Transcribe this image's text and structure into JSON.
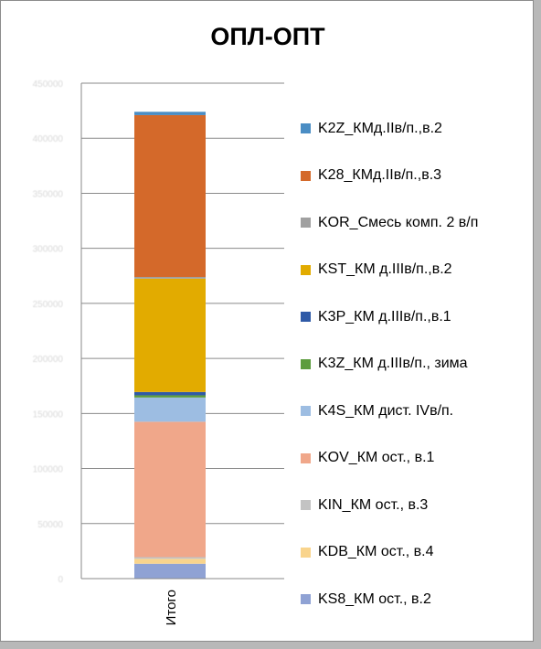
{
  "chart_data": {
    "type": "bar",
    "stacked": true,
    "title": "ОПЛ-ОПТ",
    "categories": [
      "Итого"
    ],
    "ylim": [
      0,
      450000
    ],
    "yticks": [
      0,
      50000,
      100000,
      150000,
      200000,
      250000,
      300000,
      350000,
      400000,
      450000
    ],
    "ytick_labels": [
      "0",
      "50000",
      "100000",
      "150000",
      "200000",
      "250000",
      "300000",
      "350000",
      "400000",
      "450000"
    ],
    "grid": true,
    "legend_position": "right",
    "series": [
      {
        "name": "KS8_КМ ост., в.2",
        "values": [
          13500
        ],
        "color": "#8fa2d4"
      },
      {
        "name": "KDB_КМ ост., в.4",
        "values": [
          4500
        ],
        "color": "#f9d48c"
      },
      {
        "name": "KIN_КМ ост., в.3",
        "values": [
          1500
        ],
        "color": "#c3c3c3"
      },
      {
        "name": "KOV_КМ ост., в.1",
        "values": [
          123000
        ],
        "color": "#f0a78a"
      },
      {
        "name": "K4S_КМ дист. IVв/п.",
        "values": [
          22000
        ],
        "color": "#9dbde2"
      },
      {
        "name": "K3Z_КМ д.IIIв/п., зима",
        "values": [
          2000
        ],
        "color": "#5c9c3d"
      },
      {
        "name": "K3P_КМ д.IIIв/п.,в.1",
        "values": [
          3000
        ],
        "color": "#2f5aa7"
      },
      {
        "name": "KST_КМ д.IIIв/п.,в.2",
        "values": [
          103000
        ],
        "color": "#e2ab00"
      },
      {
        "name": "KOR_Смесь комп. 2 в/п",
        "values": [
          1500
        ],
        "color": "#a0a0a0"
      },
      {
        "name": "K28_КМд.IIв/п.,в.3",
        "values": [
          147000
        ],
        "color": "#d4692a"
      },
      {
        "name": "K2Z_КМд.IIв/п.,в.2",
        "values": [
          3000
        ],
        "color": "#4a8dc4"
      }
    ]
  }
}
